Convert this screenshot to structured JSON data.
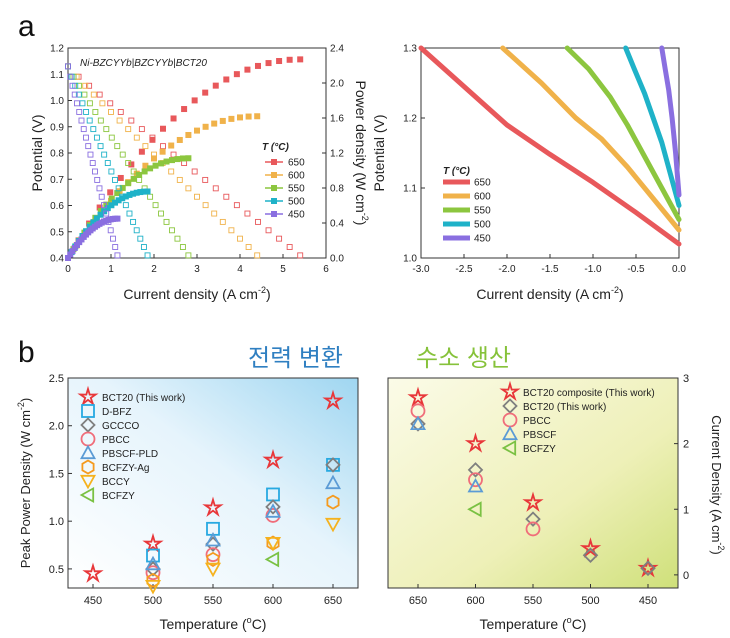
{
  "panel_labels": {
    "a": "a",
    "b": "b"
  },
  "korean_labels": {
    "power": "전력 변환",
    "hydrogen": "수소 생산",
    "power_color": "#2f7fc1",
    "hydrogen_color": "#86c23a"
  },
  "chart_data": [
    {
      "id": "a-left",
      "type": "line",
      "annotation": "Ni-BZCYYb|BZCYYb|BCT20",
      "xlabel": "Current density (A cm",
      "xlabel_sup": "-2",
      "xlabel_end": ")",
      "ylabel": "Potential (V)",
      "y2label": "Power density (W cm",
      "y2label_sup": "-2",
      "y2label_end": ")",
      "xlim": [
        0,
        6
      ],
      "ylim": [
        0.4,
        1.2
      ],
      "y2lim": [
        0,
        2.4
      ],
      "xticks": [
        "0",
        "1",
        "2",
        "3",
        "4",
        "5",
        "6"
      ],
      "yticks": [
        "0.4",
        "0.5",
        "0.6",
        "0.7",
        "0.8",
        "0.9",
        "1.0",
        "1.1",
        "1.2"
      ],
      "y2ticks": [
        "0.0",
        "0.4",
        "0.8",
        "1.2",
        "1.6",
        "2.0",
        "2.4"
      ],
      "legend_title": "T (°C)",
      "legend_position": "center-right",
      "series": [
        {
          "name": "650",
          "color": "#e8585b",
          "ocv": 1.13,
          "jmax": 5.4,
          "pmax": 2.27
        },
        {
          "name": "600",
          "color": "#f0b24a",
          "ocv": 1.13,
          "jmax": 4.4,
          "pmax": 1.62
        },
        {
          "name": "550",
          "color": "#8cc63f",
          "ocv": 1.13,
          "jmax": 2.8,
          "pmax": 1.14
        },
        {
          "name": "500",
          "color": "#1fb2c8",
          "ocv": 1.13,
          "jmax": 1.85,
          "pmax": 0.76
        },
        {
          "name": "450",
          "color": "#8a6fe0",
          "ocv": 1.13,
          "jmax": 1.15,
          "pmax": 0.45
        }
      ]
    },
    {
      "id": "a-right",
      "type": "line",
      "xlabel": "Current density (A cm",
      "xlabel_sup": "-2",
      "xlabel_end": ")",
      "ylabel": "Potential (V)",
      "xlim": [
        -3.0,
        0.0
      ],
      "ylim": [
        1.0,
        1.3
      ],
      "xticks": [
        "-3.0",
        "-2.5",
        "-2.0",
        "-1.5",
        "-1.0",
        "-0.5",
        "0.0"
      ],
      "yticks": [
        "1.0",
        "1.1",
        "1.2",
        "1.3"
      ],
      "legend_title": "T (°C)",
      "legend_position": "lower-left",
      "series": [
        {
          "name": "650",
          "color": "#e8585b",
          "points": [
            [
              0.0,
              1.02
            ],
            [
              -0.5,
              1.065
            ],
            [
              -1.0,
              1.108
            ],
            [
              -1.5,
              1.148
            ],
            [
              -2.0,
              1.19
            ],
            [
              -2.5,
              1.245
            ],
            [
              -3.0,
              1.3
            ]
          ]
        },
        {
          "name": "600",
          "color": "#f0b24a",
          "points": [
            [
              0.0,
              1.04
            ],
            [
              -0.3,
              1.085
            ],
            [
              -0.6,
              1.13
            ],
            [
              -0.9,
              1.17
            ],
            [
              -1.2,
              1.2
            ],
            [
              -1.6,
              1.25
            ],
            [
              -2.05,
              1.3
            ]
          ]
        },
        {
          "name": "550",
          "color": "#8cc63f",
          "points": [
            [
              0.0,
              1.055
            ],
            [
              -0.2,
              1.1
            ],
            [
              -0.4,
              1.145
            ],
            [
              -0.6,
              1.19
            ],
            [
              -0.8,
              1.23
            ],
            [
              -1.05,
              1.27
            ],
            [
              -1.3,
              1.3
            ]
          ]
        },
        {
          "name": "500",
          "color": "#1fb2c8",
          "points": [
            [
              0.0,
              1.075
            ],
            [
              -0.1,
              1.12
            ],
            [
              -0.2,
              1.165
            ],
            [
              -0.3,
              1.2
            ],
            [
              -0.4,
              1.235
            ],
            [
              -0.52,
              1.27
            ],
            [
              -0.62,
              1.3
            ]
          ]
        },
        {
          "name": "450",
          "color": "#8a6fe0",
          "points": [
            [
              0.0,
              1.09
            ],
            [
              -0.04,
              1.15
            ],
            [
              -0.08,
              1.2
            ],
            [
              -0.12,
              1.24
            ],
            [
              -0.16,
              1.27
            ],
            [
              -0.2,
              1.3
            ]
          ]
        }
      ]
    },
    {
      "id": "b-left",
      "type": "scatter",
      "xlabel": "Temperature (",
      "xlabel_sup": "o",
      "xlabel_end": "C)",
      "ylabel": "Peak Power Density (W cm",
      "ylabel_sup": "-2",
      "ylabel_end": ")",
      "categories": [
        "450",
        "500",
        "550",
        "600",
        "650"
      ],
      "ylim": [
        0.3,
        2.5
      ],
      "yticks": [
        "0.5",
        "1.0",
        "1.5",
        "2.0",
        "2.5"
      ],
      "legend_position": "top-left",
      "series": [
        {
          "name": "BCT20 (This work)",
          "marker": "star",
          "color": "#e8373a",
          "values": [
            0.45,
            0.76,
            1.14,
            1.64,
            2.26
          ]
        },
        {
          "name": "D-BFZ",
          "marker": "square",
          "color": "#27a9e1",
          "values": [
            null,
            0.64,
            0.92,
            1.28,
            1.59
          ]
        },
        {
          "name": "GCCCO",
          "marker": "diamond",
          "color": "#7f7f7f",
          "values": [
            null,
            0.5,
            0.76,
            1.15,
            1.59
          ]
        },
        {
          "name": "PBCC",
          "marker": "circle",
          "color": "#f06d7a",
          "values": [
            null,
            0.46,
            0.65,
            1.06,
            null
          ]
        },
        {
          "name": "PBSCF-PLD",
          "marker": "triangle-up",
          "color": "#5b9bd5",
          "values": [
            null,
            0.55,
            0.8,
            1.1,
            1.4
          ]
        },
        {
          "name": "BCFZY-Ag",
          "marker": "hexagon",
          "color": "#f59a1e",
          "values": [
            null,
            0.38,
            0.6,
            0.77,
            1.2
          ]
        },
        {
          "name": "BCCY",
          "marker": "triangle-down",
          "color": "#f5b21e",
          "values": [
            null,
            0.32,
            0.5,
            0.77,
            0.97
          ]
        },
        {
          "name": "BCFZY",
          "marker": "triangle-left",
          "color": "#7ac143",
          "values": [
            null,
            null,
            null,
            0.6,
            null
          ]
        }
      ]
    },
    {
      "id": "b-right",
      "type": "scatter",
      "xlabel": "Temperature (",
      "xlabel_sup": "o",
      "xlabel_end": "C)",
      "y2label": "Current Density (A cm",
      "y2label_sup": "-2",
      "y2label_end": ")",
      "categories": [
        "650",
        "600",
        "550",
        "500",
        "450"
      ],
      "ylim": [
        -0.2,
        3.0
      ],
      "y2ticks": [
        "0",
        "1",
        "2",
        "3"
      ],
      "legend_position": "top-right",
      "series": [
        {
          "name": "BCT20 composite (This work)",
          "marker": "star",
          "color": "#e8373a",
          "values": [
            2.7,
            2.0,
            1.1,
            0.4,
            0.1
          ]
        },
        {
          "name": "BCT20 (This work)",
          "marker": "diamond",
          "color": "#7f7f7f",
          "values": [
            2.3,
            1.6,
            0.85,
            0.3,
            0.1
          ]
        },
        {
          "name": "PBCC",
          "marker": "circle",
          "color": "#f06d7a",
          "values": [
            2.5,
            1.45,
            0.7,
            null,
            null
          ]
        },
        {
          "name": "PBSCF",
          "marker": "triangle-up",
          "color": "#5b9bd5",
          "values": [
            2.3,
            1.35,
            null,
            null,
            null
          ]
        },
        {
          "name": "BCFZY",
          "marker": "triangle-left",
          "color": "#7ac143",
          "values": [
            null,
            1.0,
            null,
            null,
            null
          ]
        }
      ]
    }
  ]
}
